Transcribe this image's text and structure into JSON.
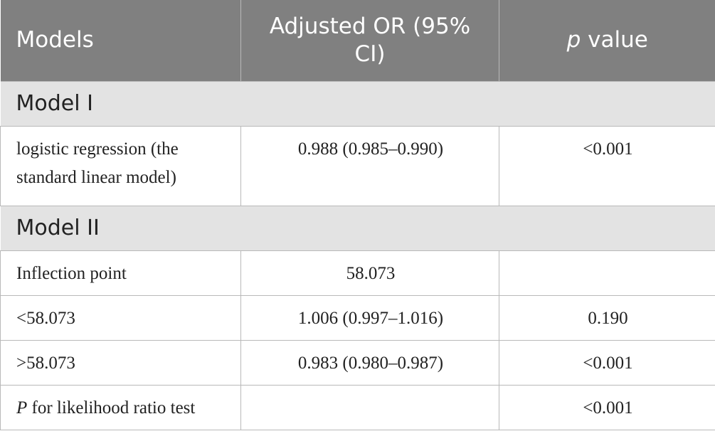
{
  "header": {
    "col1": "Models",
    "col2": "Adjusted OR (95% CI)",
    "col3_italic": "p",
    "col3_rest": " value"
  },
  "sections": [
    {
      "title": "Model I",
      "rows": [
        {
          "label": "logistic regression (the standard linear model)",
          "or": "0.988 (0.985–0.990)",
          "p": "<0.001"
        }
      ]
    },
    {
      "title": "Model II",
      "rows": [
        {
          "label": "Inflection point",
          "or": "58.073",
          "p": ""
        },
        {
          "label": "<58.073",
          "or": "1.006 (0.997–1.016)",
          "p": "0.190"
        },
        {
          "label": ">58.073",
          "or": "0.983 (0.980–0.987)",
          "p": "<0.001"
        },
        {
          "label_italic": "P",
          "label_rest": " for likelihood ratio test",
          "or": "",
          "p": "<0.001"
        }
      ]
    }
  ],
  "colors": {
    "header_bg": "#808080",
    "section_bg": "#e3e3e3",
    "border": "#b9b9b9"
  }
}
